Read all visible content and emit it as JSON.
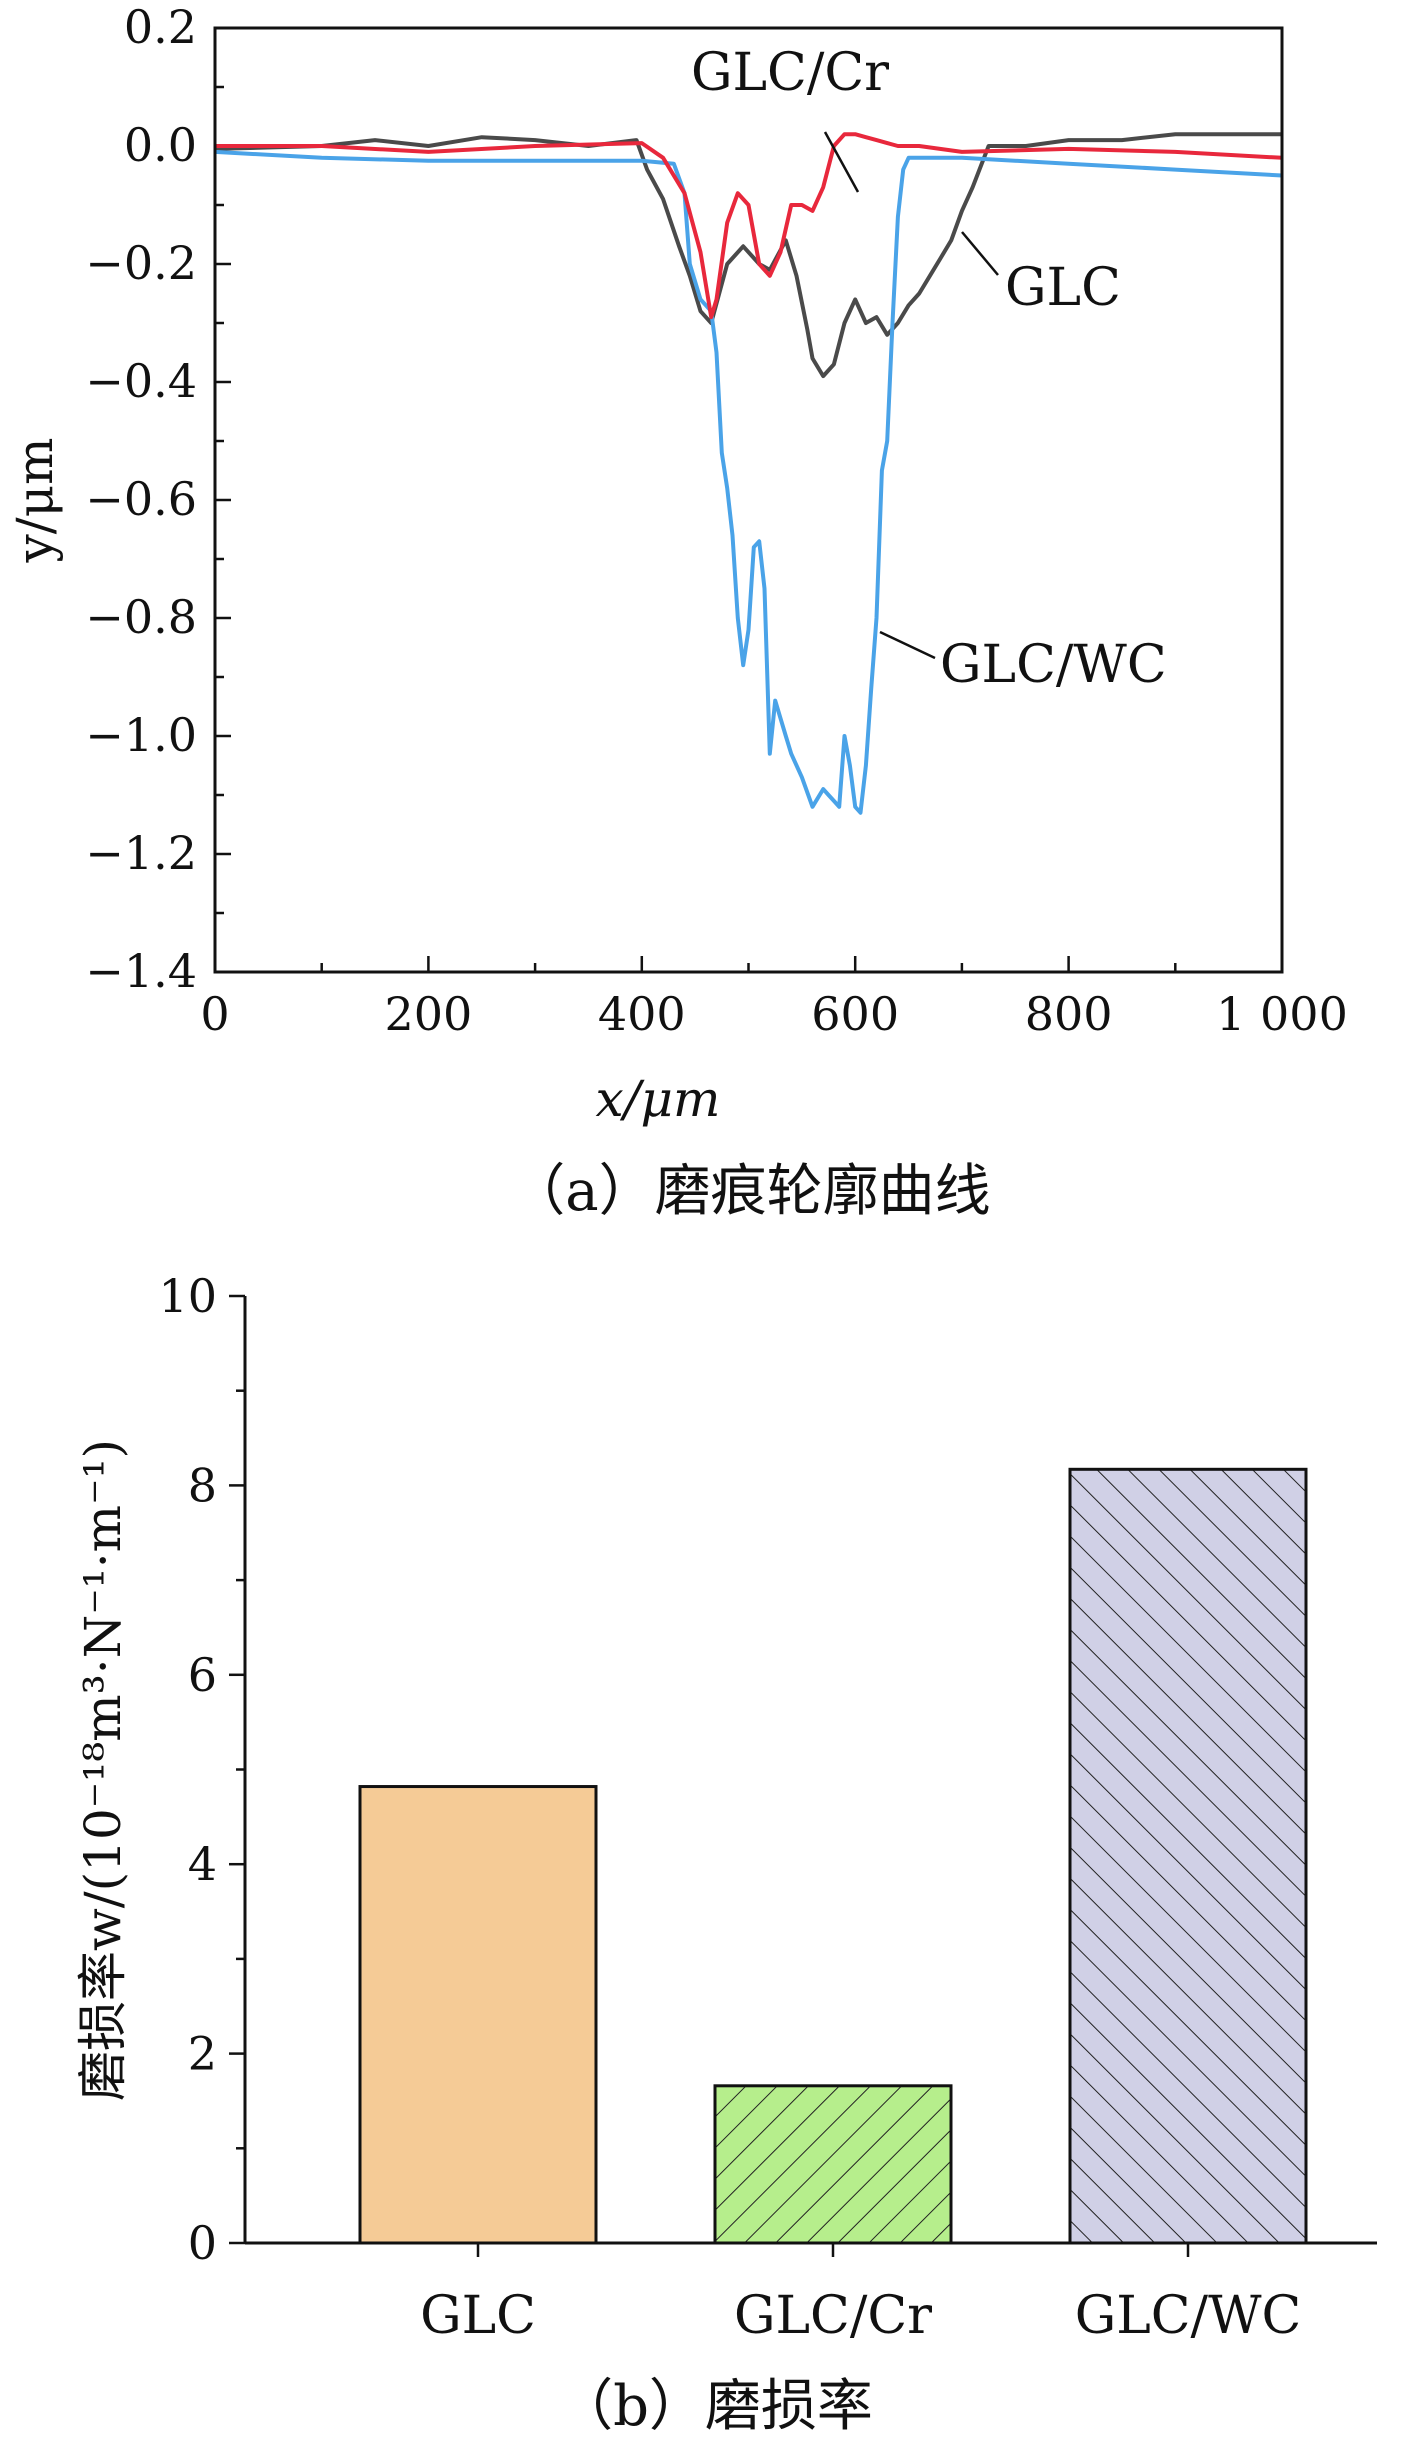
{
  "chart_data": [
    {
      "type": "line",
      "caption": "（a）磨痕轮廓曲线",
      "xlabel": "x/μm",
      "ylabel": "y/μm",
      "xlim": [
        0,
        1000
      ],
      "ylim": [
        -1.4,
        0.2
      ],
      "xticks": [
        "0",
        "200",
        "400",
        "600",
        "800",
        "1 000"
      ],
      "yticks": [
        "0.2",
        "0.0",
        "-0.2",
        "-0.4",
        "-0.6",
        "-0.8",
        "-1.0",
        "-1.2",
        "-1.4"
      ],
      "colors": {
        "GLC": "#4a4a4a",
        "GLC/Cr": "#e8283c",
        "GLC/WC": "#4aa3e8"
      },
      "series": [
        {
          "name": "GLC",
          "x": [
            0,
            100,
            150,
            200,
            250,
            300,
            350,
            395,
            405,
            420,
            435,
            445,
            455,
            465,
            480,
            495,
            510,
            520,
            535,
            545,
            555,
            560,
            570,
            580,
            590,
            600,
            610,
            620,
            630,
            640,
            650,
            660,
            670,
            680,
            690,
            700,
            710,
            725,
            760,
            800,
            850,
            900,
            950,
            1000
          ],
          "y": [
            -0.005,
            0.0,
            0.01,
            0.0,
            0.015,
            0.01,
            0.0,
            0.01,
            -0.04,
            -0.09,
            -0.17,
            -0.22,
            -0.28,
            -0.3,
            -0.2,
            -0.17,
            -0.2,
            -0.21,
            -0.16,
            -0.22,
            -0.31,
            -0.36,
            -0.39,
            -0.37,
            -0.3,
            -0.26,
            -0.3,
            -0.29,
            -0.32,
            -0.3,
            -0.27,
            -0.25,
            -0.22,
            -0.19,
            -0.16,
            -0.11,
            -0.07,
            0.0,
            0.0,
            0.01,
            0.01,
            0.02,
            0.02,
            0.02
          ]
        },
        {
          "name": "GLC/Cr",
          "x": [
            0,
            100,
            200,
            300,
            400,
            420,
            440,
            455,
            465,
            470,
            480,
            490,
            500,
            510,
            520,
            530,
            540,
            550,
            560,
            570,
            580,
            590,
            600,
            610,
            620,
            630,
            640,
            660,
            700,
            800,
            900,
            1000
          ],
          "y": [
            0.0,
            0.0,
            -0.01,
            0.0,
            0.005,
            -0.02,
            -0.08,
            -0.18,
            -0.29,
            -0.26,
            -0.13,
            -0.08,
            -0.1,
            -0.2,
            -0.22,
            -0.18,
            -0.1,
            -0.1,
            -0.11,
            -0.07,
            0.0,
            0.02,
            0.02,
            0.015,
            0.01,
            0.005,
            0.0,
            0.0,
            -0.01,
            -0.005,
            -0.01,
            -0.02
          ]
        },
        {
          "name": "GLC/WC",
          "x": [
            0,
            100,
            200,
            300,
            400,
            430,
            440,
            445,
            455,
            465,
            470,
            475,
            480,
            485,
            490,
            495,
            500,
            505,
            510,
            515,
            520,
            525,
            530,
            535,
            540,
            550,
            560,
            570,
            575,
            580,
            585,
            590,
            595,
            600,
            605,
            610,
            615,
            620,
            625,
            630,
            635,
            640,
            645,
            650,
            700,
            800,
            900,
            1000
          ],
          "y": [
            -0.01,
            -0.02,
            -0.025,
            -0.025,
            -0.025,
            -0.03,
            -0.08,
            -0.2,
            -0.26,
            -0.28,
            -0.35,
            -0.52,
            -0.58,
            -0.66,
            -0.8,
            -0.88,
            -0.82,
            -0.68,
            -0.67,
            -0.75,
            -1.03,
            -0.94,
            -0.97,
            -1.0,
            -1.03,
            -1.07,
            -1.12,
            -1.09,
            -1.1,
            -1.11,
            -1.12,
            -1.0,
            -1.05,
            -1.12,
            -1.13,
            -1.05,
            -0.92,
            -0.8,
            -0.55,
            -0.5,
            -0.3,
            -0.12,
            -0.04,
            -0.02,
            -0.02,
            -0.03,
            -0.04,
            -0.05
          ]
        }
      ]
    },
    {
      "type": "bar",
      "caption": "（b）磨损率",
      "ylabel": "磨损率w/(10⁻¹⁸m³·N⁻¹·m⁻¹)",
      "ylim": [
        0,
        10
      ],
      "yticks": [
        "0",
        "2",
        "4",
        "6",
        "8",
        "10"
      ],
      "categories": [
        "GLC",
        "GLC/Cr",
        "GLC/WC"
      ],
      "values": [
        4.82,
        1.66,
        8.17
      ],
      "colors": {
        "GLC": "#f5cb96",
        "GLC/Cr": "#b6ee8c",
        "GLC/WC": "#d0d0e6"
      },
      "patterns": [
        "solid",
        "hatch",
        "hatch"
      ]
    }
  ]
}
